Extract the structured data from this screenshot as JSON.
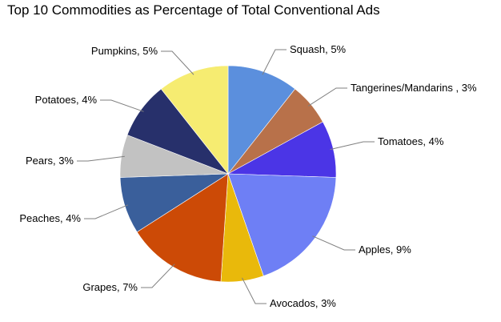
{
  "chart_data": {
    "type": "pie",
    "title": "Top 10 Commodities as Percentage of Total Conventional Ads",
    "slices": [
      {
        "name": "Squash",
        "label": "Squash, 5%",
        "value": 5,
        "color": "#5b8fdd"
      },
      {
        "name": "Tangerines/Mandarins",
        "label": "Tangerines/Mandarins , 3%",
        "value": 3,
        "color": "#b8714a"
      },
      {
        "name": "Tomatoes",
        "label": "Tomatoes, 4%",
        "value": 4,
        "color": "#4b35e6"
      },
      {
        "name": "Apples",
        "label": "Apples, 9%",
        "value": 9,
        "color": "#6e7ff5"
      },
      {
        "name": "Avocados",
        "label": "Avocados, 3%",
        "value": 3,
        "color": "#e9b90b"
      },
      {
        "name": "Grapes",
        "label": "Grapes, 7%",
        "value": 7,
        "color": "#cc4a06"
      },
      {
        "name": "Peaches",
        "label": "Peaches, 4%",
        "value": 4,
        "color": "#3a5f9b"
      },
      {
        "name": "Pears",
        "label": "Pears, 3%",
        "value": 3,
        "color": "#c2c2c2"
      },
      {
        "name": "Potatoes",
        "label": "Potatoes, 4%",
        "value": 4,
        "color": "#27306b"
      },
      {
        "name": "Pumpkins",
        "label": "Pumpkins, 5%",
        "value": 5,
        "color": "#f6ec71"
      }
    ],
    "start": "12 o'clock",
    "direction": "clockwise"
  }
}
